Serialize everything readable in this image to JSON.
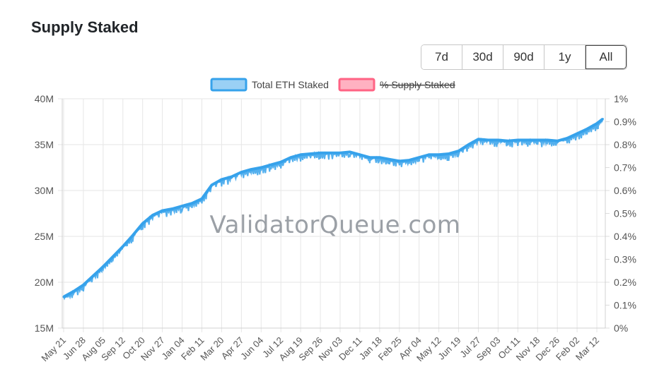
{
  "header": {
    "title": "Supply Staked"
  },
  "range_buttons": [
    {
      "label": "7d",
      "active": false
    },
    {
      "label": "30d",
      "active": false
    },
    {
      "label": "90d",
      "active": false
    },
    {
      "label": "1y",
      "active": false
    },
    {
      "label": "All",
      "active": true
    }
  ],
  "watermark": "ValidatorQueue.com",
  "chart_data": {
    "type": "line",
    "title": "",
    "xlabel": "",
    "ylabel": "",
    "legend": {
      "placement": "top-center",
      "entries": [
        {
          "name": "Total ETH Staked",
          "color": "#36a2eb",
          "hidden": false
        },
        {
          "name": "% Supply Staked",
          "color": "#ff6384",
          "hidden": true
        }
      ]
    },
    "y_left": {
      "ylim": [
        15000000,
        40000000
      ],
      "ticks": [
        "15M",
        "20M",
        "25M",
        "30M",
        "35M",
        "40M"
      ]
    },
    "y_right": {
      "ylim": [
        0,
        1
      ],
      "unit": "%",
      "ticks": [
        "0%",
        "0.1%",
        "0.2%",
        "0.3%",
        "0.4%",
        "0.5%",
        "0.6%",
        "0.7%",
        "0.8%",
        "0.9%",
        "1%"
      ]
    },
    "grid": true,
    "x_ticks": [
      "May 21",
      "Jun 28",
      "Aug 05",
      "Sep 12",
      "Oct 20",
      "Nov 27",
      "Jan 04",
      "Feb 11",
      "Mar 20",
      "Apr 27",
      "Jun 04",
      "Jul 12",
      "Aug 19",
      "Sep 26",
      "Nov 03",
      "Dec 11",
      "Jan 18",
      "Feb 25",
      "Apr 04",
      "May 12",
      "Jun 19",
      "Jul 27",
      "Sep 03",
      "Oct 11",
      "Nov 18",
      "Dec 26",
      "Feb 02",
      "Mar 12"
    ],
    "series": [
      {
        "name": "Total ETH Staked",
        "color": "#36a2eb",
        "tick_index": [
          0,
          0.5,
          1,
          1.5,
          2,
          2.5,
          3,
          3.5,
          4,
          4.5,
          5,
          5.5,
          6,
          6.5,
          7,
          7.5,
          8,
          8.5,
          9,
          9.5,
          10,
          10.5,
          11,
          11.5,
          12,
          12.5,
          13,
          13.5,
          14,
          14.5,
          15,
          15.5,
          16,
          16.5,
          17,
          17.5,
          18,
          18.5,
          19,
          19.5,
          20,
          20.5,
          21,
          21.5,
          22,
          22.5,
          23,
          23.5,
          24,
          24.5,
          25,
          25.5,
          26,
          26.5,
          27,
          27.3
        ],
        "values": [
          18400000,
          19000000,
          19700000,
          20700000,
          21700000,
          22800000,
          23900000,
          25100000,
          26400000,
          27300000,
          27800000,
          28000000,
          28300000,
          28600000,
          29100000,
          30600000,
          31200000,
          31500000,
          32000000,
          32300000,
          32500000,
          32800000,
          33100000,
          33600000,
          33900000,
          34000000,
          34100000,
          34100000,
          34100000,
          34200000,
          33900000,
          33600000,
          33600000,
          33400000,
          33200000,
          33300000,
          33600000,
          33900000,
          33900000,
          34000000,
          34300000,
          35000000,
          35600000,
          35500000,
          35500000,
          35400000,
          35500000,
          35500000,
          35500000,
          35500000,
          35400000,
          35700000,
          36200000,
          36700000,
          37300000,
          37800000
        ]
      }
    ]
  }
}
